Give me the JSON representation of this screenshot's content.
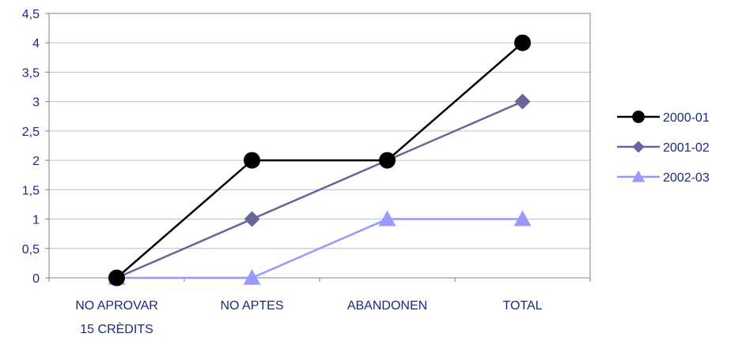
{
  "chart_data": {
    "type": "line",
    "categories": [
      [
        "NO APROVAR",
        "15 CRÈDITS"
      ],
      [
        "NO APTES"
      ],
      [
        "ABANDONEN"
      ],
      [
        "TOTAL"
      ]
    ],
    "ylim": [
      0,
      4.5
    ],
    "y_ticks": [
      "0",
      "0,5",
      "1",
      "1,5",
      "2",
      "2,5",
      "3",
      "3,5",
      "4",
      "4,5"
    ],
    "grid": true,
    "legend_position": "right",
    "series": [
      {
        "name": "2000-01",
        "values": [
          0,
          2,
          2,
          4
        ],
        "color": "#000000",
        "marker": "circle"
      },
      {
        "name": "2001-02",
        "values": [
          0,
          1,
          2,
          3
        ],
        "color": "#666699",
        "marker": "diamond"
      },
      {
        "name": "2002-03",
        "values": [
          0,
          0,
          1,
          1
        ],
        "color": "#9999ff",
        "marker": "triangle"
      }
    ]
  }
}
